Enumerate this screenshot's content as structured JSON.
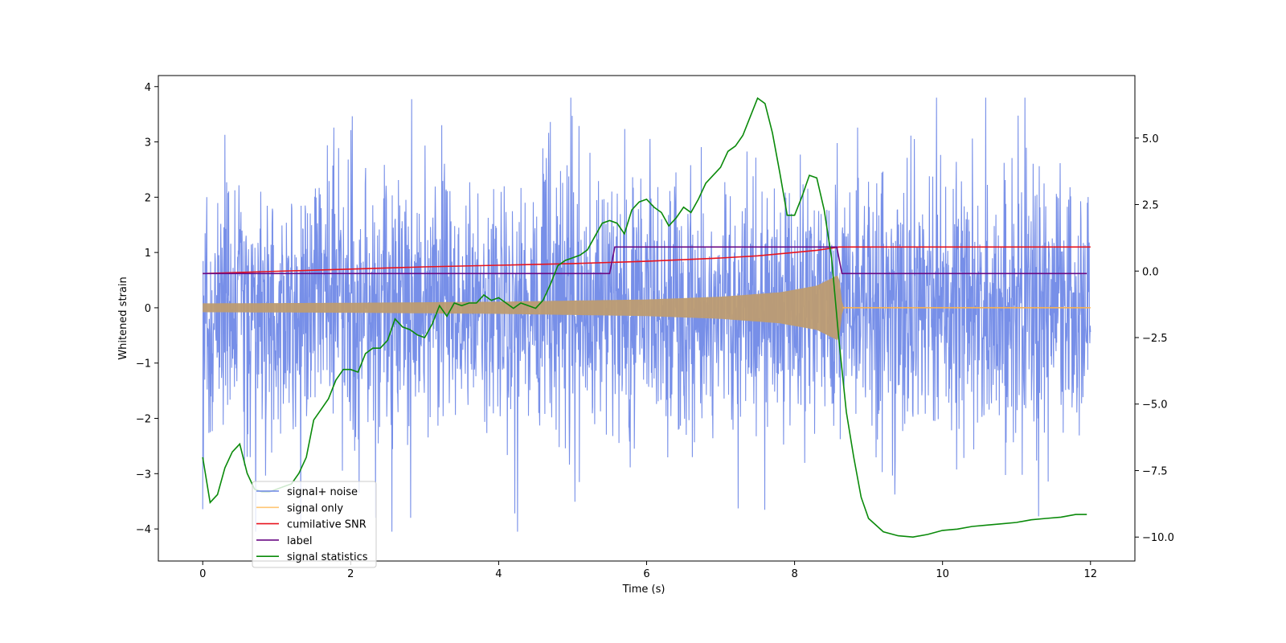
{
  "chart_data": {
    "type": "line",
    "xlabel": "Time (s)",
    "ylabel": "Whitened strain",
    "xlim": [
      -0.6,
      12.6
    ],
    "ylim": [
      -4.58,
      4.2
    ],
    "ylim_right": [
      -10.9,
      7.35
    ],
    "x_ticks": [
      0,
      2,
      4,
      6,
      8,
      10,
      12
    ],
    "x_tick_labels": [
      "0",
      "2",
      "4",
      "6",
      "8",
      "10",
      "12"
    ],
    "y_ticks": [
      4,
      3,
      2,
      1,
      0,
      -1,
      -2,
      -3,
      -4
    ],
    "y_tick_labels": [
      "4",
      "3",
      "2",
      "1",
      "0",
      "−1",
      "−2",
      "−3",
      "−4"
    ],
    "y2_ticks": [
      5.0,
      2.5,
      0.0,
      -2.5,
      -5.0,
      -7.5,
      -10.0
    ],
    "y2_tick_labels": [
      "5.0",
      "2.5",
      "0.0",
      "−2.5",
      "−5.0",
      "−7.5",
      "−10.0"
    ],
    "grid": false,
    "legend_position": "lower-left",
    "series": [
      {
        "name": "signal+ noise",
        "color": "#6b86e6",
        "axis": "left",
        "style": "noisy band",
        "x_range": [
          0,
          12
        ],
        "upper_envelope_approx": 2.4,
        "lower_envelope_approx": -2.4,
        "max": 3.8,
        "min": -4.05
      },
      {
        "name": "signal only",
        "color": "#ffb347",
        "axis": "left",
        "style": "chirp envelope",
        "envelope": [
          [
            0,
            0.08
          ],
          [
            2,
            0.09
          ],
          [
            4,
            0.11
          ],
          [
            6,
            0.15
          ],
          [
            7,
            0.2
          ],
          [
            7.8,
            0.28
          ],
          [
            8.3,
            0.4
          ],
          [
            8.6,
            0.6
          ],
          [
            8.65,
            0.0
          ],
          [
            12,
            0.0
          ]
        ]
      },
      {
        "name": "cumilative SNR",
        "color": "#e8141e",
        "axis": "left",
        "x": [
          0,
          1,
          2,
          3,
          4,
          5,
          6,
          7,
          7.5,
          8,
          8.3,
          8.6,
          8.65,
          10,
          12
        ],
        "y": [
          0.62,
          0.66,
          0.7,
          0.74,
          0.77,
          0.8,
          0.84,
          0.9,
          0.94,
          1.0,
          1.04,
          1.1,
          1.1,
          1.1,
          1.1
        ]
      },
      {
        "name": "label",
        "color": "#6a0a84",
        "axis": "left",
        "x": [
          0,
          5.5,
          5.57,
          8.57,
          8.64,
          11.95
        ],
        "y": [
          0.62,
          0.62,
          1.1,
          1.1,
          0.62,
          0.62
        ]
      },
      {
        "name": "signal statistics",
        "color": "#0a8a0a",
        "axis": "right",
        "x": [
          0,
          0.1,
          0.2,
          0.3,
          0.4,
          0.5,
          0.6,
          0.7,
          0.8,
          0.9,
          1.0,
          1.1,
          1.2,
          1.3,
          1.4,
          1.5,
          1.6,
          1.7,
          1.8,
          1.9,
          2.0,
          2.1,
          2.2,
          2.3,
          2.4,
          2.5,
          2.6,
          2.7,
          2.8,
          2.9,
          3.0,
          3.1,
          3.2,
          3.3,
          3.4,
          3.5,
          3.6,
          3.7,
          3.8,
          3.9,
          4.0,
          4.1,
          4.2,
          4.3,
          4.4,
          4.5,
          4.6,
          4.7,
          4.8,
          4.9,
          5.0,
          5.1,
          5.2,
          5.3,
          5.4,
          5.5,
          5.6,
          5.7,
          5.8,
          5.9,
          6.0,
          6.1,
          6.2,
          6.3,
          6.4,
          6.5,
          6.6,
          6.7,
          6.8,
          6.9,
          7.0,
          7.1,
          7.2,
          7.3,
          7.4,
          7.5,
          7.6,
          7.7,
          7.8,
          7.9,
          8.0,
          8.1,
          8.2,
          8.3,
          8.4,
          8.5,
          8.6,
          8.7,
          8.8,
          8.9,
          9.0,
          9.2,
          9.4,
          9.6,
          9.8,
          10.0,
          10.2,
          10.4,
          10.6,
          10.8,
          11.0,
          11.2,
          11.4,
          11.6,
          11.8,
          11.95
        ],
        "y": [
          -7.0,
          -8.7,
          -8.4,
          -7.4,
          -6.8,
          -6.5,
          -7.6,
          -8.2,
          -8.3,
          -8.3,
          -8.2,
          -8.1,
          -8.0,
          -7.6,
          -7.0,
          -5.6,
          -5.2,
          -4.8,
          -4.1,
          -3.7,
          -3.7,
          -3.8,
          -3.1,
          -2.9,
          -2.9,
          -2.6,
          -1.8,
          -2.1,
          -2.2,
          -2.4,
          -2.5,
          -2.0,
          -1.3,
          -1.7,
          -1.2,
          -1.3,
          -1.2,
          -1.2,
          -0.9,
          -1.1,
          -1.0,
          -1.2,
          -1.4,
          -1.2,
          -1.3,
          -1.4,
          -1.1,
          -0.5,
          0.2,
          0.4,
          0.5,
          0.6,
          0.8,
          1.3,
          1.8,
          1.9,
          1.8,
          1.4,
          2.3,
          2.6,
          2.7,
          2.4,
          2.2,
          1.7,
          2.0,
          2.4,
          2.2,
          2.7,
          3.3,
          3.6,
          3.9,
          4.5,
          4.7,
          5.1,
          5.8,
          6.5,
          6.3,
          5.2,
          3.7,
          2.1,
          2.1,
          2.8,
          3.6,
          3.5,
          2.3,
          0.5,
          -2.6,
          -5.3,
          -7.0,
          -8.5,
          -9.3,
          -9.8,
          -9.95,
          -10.0,
          -9.9,
          -9.75,
          -9.7,
          -9.6,
          -9.55,
          -9.5,
          -9.45,
          -9.35,
          -9.3,
          -9.25,
          -9.15,
          -9.15
        ]
      }
    ]
  }
}
